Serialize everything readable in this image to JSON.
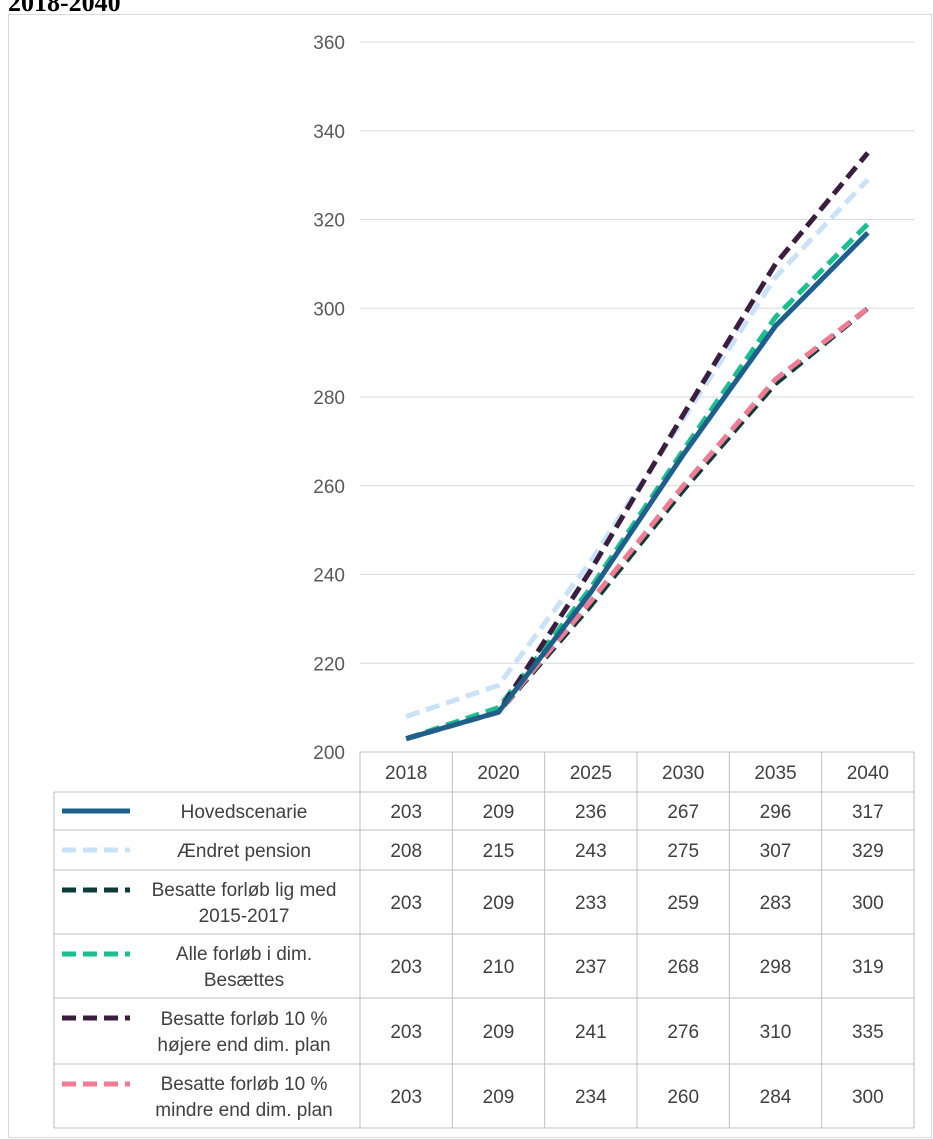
{
  "header": {
    "title_fragment": "2018-2040"
  },
  "chart_data": {
    "type": "line",
    "ylim": [
      200,
      360
    ],
    "yticks": [
      200,
      220,
      240,
      260,
      280,
      300,
      320,
      340,
      360
    ],
    "categories": [
      "2018",
      "2020",
      "2025",
      "2030",
      "2035",
      "2040"
    ],
    "grid": true,
    "legend": "data-table-below",
    "series": [
      {
        "name_lines": [
          "Hovedscenarie"
        ],
        "color": "#1f5f8b",
        "style": "solid",
        "values": [
          203,
          209,
          236,
          267,
          296,
          317
        ]
      },
      {
        "name_lines": [
          "Ændret pension"
        ],
        "color": "#c9e2f7",
        "style": "dashed",
        "values": [
          208,
          215,
          243,
          275,
          307,
          329
        ]
      },
      {
        "name_lines": [
          "Besatte forløb lig med",
          "2015-2017"
        ],
        "color": "#0c3b3a",
        "style": "dashed",
        "values": [
          203,
          209,
          233,
          259,
          283,
          300
        ]
      },
      {
        "name_lines": [
          "Alle forløb i dim.",
          "Besættes"
        ],
        "color": "#1bbf8f",
        "style": "dashed",
        "values": [
          203,
          210,
          237,
          268,
          298,
          319
        ]
      },
      {
        "name_lines": [
          "Besatte forløb 10 %",
          "højere end dim. plan"
        ],
        "color": "#3a1d3f",
        "style": "dashed",
        "values": [
          203,
          209,
          241,
          276,
          310,
          335
        ]
      },
      {
        "name_lines": [
          "Besatte forløb 10 %",
          "mindre end dim. plan"
        ],
        "color": "#f07b93",
        "style": "dashed",
        "values": [
          203,
          209,
          234,
          260,
          284,
          300
        ]
      }
    ]
  }
}
